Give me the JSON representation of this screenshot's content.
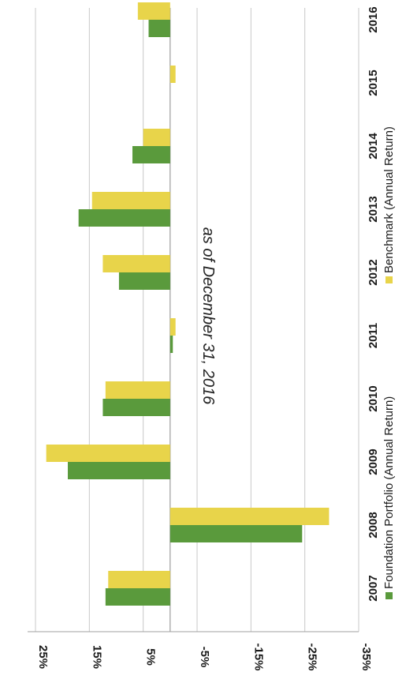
{
  "chart_data": {
    "type": "bar",
    "orientation": "rotated-90",
    "subtitle": "as of December 31, 2016",
    "categories": [
      "2007",
      "2008",
      "2009",
      "2010",
      "2011",
      "2012",
      "2013",
      "2014",
      "2015",
      "2016"
    ],
    "series": [
      {
        "name": "Foundation Portfolio (Annual Return)",
        "color": "#5a9a3c",
        "values": [
          12.0,
          -24.5,
          19.0,
          12.5,
          -0.5,
          9.5,
          17.0,
          7.0,
          0.0,
          4.0
        ]
      },
      {
        "name": "Benchmark (Annual Return)",
        "color": "#e8d44a",
        "values": [
          11.5,
          -29.5,
          23.0,
          12.0,
          -1.0,
          12.5,
          14.5,
          5.0,
          -1.0,
          6.0
        ]
      }
    ],
    "value_axis": {
      "range": [
        -35,
        25
      ],
      "ticks": [
        "25%",
        "15%",
        "5%",
        "-5%",
        "-15%",
        "-25%",
        "-35%"
      ],
      "grid": true
    },
    "legend_position": "right"
  }
}
